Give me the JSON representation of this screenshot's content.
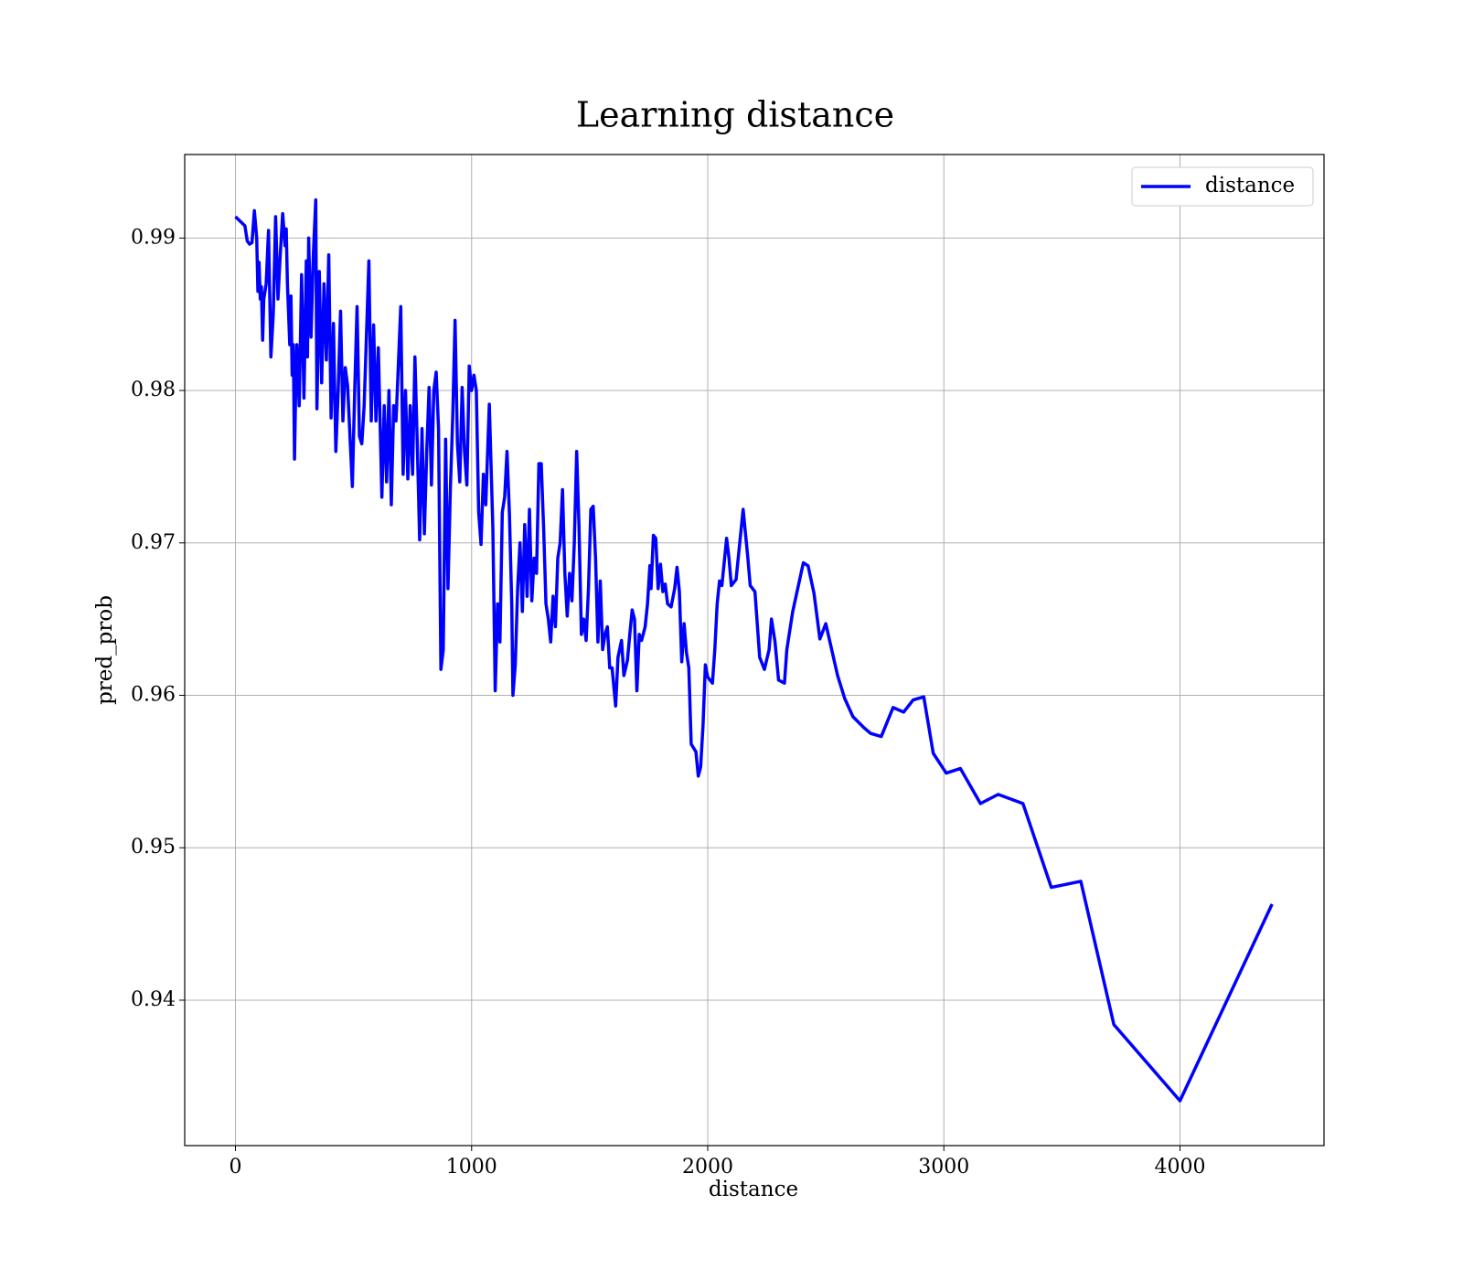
{
  "chart_data": {
    "type": "line",
    "title": "Learning distance",
    "x_label": "distance",
    "y_label": "pred_prob",
    "x": [
      0,
      40,
      50,
      60,
      70,
      80,
      90,
      95,
      100,
      105,
      110,
      115,
      120,
      130,
      140,
      150,
      160,
      170,
      180,
      190,
      200,
      210,
      215,
      220,
      230,
      235,
      240,
      245,
      250,
      255,
      260,
      270,
      280,
      290,
      300,
      305,
      310,
      320,
      330,
      340,
      345,
      355,
      365,
      375,
      385,
      395,
      405,
      415,
      425,
      435,
      445,
      455,
      465,
      475,
      495,
      505,
      515,
      525,
      535,
      545,
      565,
      575,
      585,
      595,
      605,
      620,
      630,
      640,
      650,
      660,
      670,
      680,
      700,
      710,
      720,
      730,
      740,
      750,
      760,
      770,
      780,
      790,
      800,
      810,
      820,
      830,
      840,
      850,
      860,
      870,
      880,
      890,
      900,
      910,
      920,
      930,
      940,
      950,
      960,
      970,
      980,
      990,
      1000,
      1010,
      1020,
      1030,
      1040,
      1050,
      1060,
      1075,
      1090,
      1100,
      1110,
      1120,
      1130,
      1140,
      1150,
      1160,
      1170,
      1175,
      1185,
      1195,
      1205,
      1215,
      1225,
      1235,
      1245,
      1255,
      1265,
      1275,
      1285,
      1295,
      1305,
      1315,
      1325,
      1335,
      1345,
      1355,
      1365,
      1375,
      1385,
      1395,
      1405,
      1415,
      1425,
      1435,
      1445,
      1455,
      1465,
      1475,
      1485,
      1495,
      1505,
      1515,
      1525,
      1535,
      1545,
      1555,
      1565,
      1575,
      1585,
      1595,
      1610,
      1620,
      1635,
      1645,
      1660,
      1670,
      1680,
      1690,
      1700,
      1710,
      1720,
      1735,
      1745,
      1755,
      1760,
      1770,
      1780,
      1790,
      1800,
      1810,
      1820,
      1830,
      1845,
      1860,
      1870,
      1880,
      1890,
      1900,
      1910,
      1920,
      1930,
      1950,
      1960,
      1970,
      1980,
      1990,
      2000,
      2020,
      2030,
      2040,
      2050,
      2060,
      2080,
      2090,
      2100,
      2120,
      2150,
      2170,
      2180,
      2200,
      2220,
      2240,
      2260,
      2270,
      2285,
      2300,
      2325,
      2335,
      2360,
      2405,
      2425,
      2450,
      2475,
      2500,
      2550,
      2580,
      2615,
      2660,
      2690,
      2735,
      2785,
      2830,
      2870,
      2915,
      2955,
      3010,
      3070,
      3155,
      3230,
      3335,
      3455,
      3580,
      3720,
      4000,
      4390
    ],
    "series": [
      {
        "name": "distance",
        "color": "#0000ff",
        "values": [
          0.9914,
          0.9908,
          0.9898,
          0.9896,
          0.9897,
          0.9918,
          0.99,
          0.9865,
          0.9884,
          0.986,
          0.9868,
          0.9833,
          0.986,
          0.987,
          0.9905,
          0.9822,
          0.985,
          0.9914,
          0.986,
          0.989,
          0.9916,
          0.9895,
          0.9906,
          0.987,
          0.983,
          0.9862,
          0.981,
          0.983,
          0.9755,
          0.98,
          0.983,
          0.979,
          0.9876,
          0.9795,
          0.9885,
          0.9822,
          0.99,
          0.9835,
          0.989,
          0.9925,
          0.9788,
          0.9878,
          0.9805,
          0.987,
          0.982,
          0.9889,
          0.9782,
          0.9844,
          0.976,
          0.98,
          0.9852,
          0.978,
          0.9815,
          0.9803,
          0.9737,
          0.98,
          0.9855,
          0.977,
          0.9765,
          0.979,
          0.9885,
          0.978,
          0.9843,
          0.978,
          0.9828,
          0.973,
          0.979,
          0.974,
          0.98,
          0.9725,
          0.979,
          0.978,
          0.9855,
          0.9745,
          0.98,
          0.9742,
          0.979,
          0.9745,
          0.9822,
          0.9765,
          0.9702,
          0.9775,
          0.9706,
          0.976,
          0.9802,
          0.9738,
          0.98,
          0.9812,
          0.9775,
          0.9617,
          0.963,
          0.9768,
          0.967,
          0.9735,
          0.9782,
          0.9846,
          0.9765,
          0.974,
          0.9802,
          0.976,
          0.9738,
          0.9816,
          0.98,
          0.981,
          0.98,
          0.972,
          0.9699,
          0.9745,
          0.9725,
          0.9791,
          0.971,
          0.9603,
          0.966,
          0.9635,
          0.972,
          0.973,
          0.976,
          0.972,
          0.966,
          0.96,
          0.962,
          0.967,
          0.97,
          0.9655,
          0.9712,
          0.9665,
          0.9722,
          0.9662,
          0.969,
          0.968,
          0.9752,
          0.9752,
          0.971,
          0.966,
          0.965,
          0.9635,
          0.9665,
          0.9645,
          0.969,
          0.97,
          0.9735,
          0.968,
          0.9652,
          0.968,
          0.9662,
          0.97,
          0.976,
          0.971,
          0.964,
          0.965,
          0.9636,
          0.967,
          0.9722,
          0.9724,
          0.969,
          0.9635,
          0.9675,
          0.963,
          0.964,
          0.9645,
          0.9618,
          0.9618,
          0.9593,
          0.9625,
          0.9636,
          0.9613,
          0.9623,
          0.964,
          0.9656,
          0.965,
          0.9603,
          0.964,
          0.9636,
          0.9645,
          0.966,
          0.9685,
          0.967,
          0.9705,
          0.9703,
          0.967,
          0.9686,
          0.9668,
          0.9673,
          0.966,
          0.9658,
          0.967,
          0.9684,
          0.9668,
          0.9622,
          0.9647,
          0.9628,
          0.9618,
          0.9568,
          0.9563,
          0.9547,
          0.9553,
          0.958,
          0.962,
          0.9612,
          0.9608,
          0.963,
          0.966,
          0.9675,
          0.9672,
          0.9703,
          0.969,
          0.9672,
          0.9676,
          0.9722,
          0.969,
          0.9672,
          0.9668,
          0.9625,
          0.9617,
          0.963,
          0.965,
          0.9635,
          0.961,
          0.9608,
          0.963,
          0.9655,
          0.9687,
          0.9685,
          0.9667,
          0.9637,
          0.9647,
          0.9613,
          0.9598,
          0.9586,
          0.9579,
          0.9575,
          0.9573,
          0.9592,
          0.9589,
          0.9597,
          0.9599,
          0.9562,
          0.9549,
          0.9552,
          0.9529,
          0.9535,
          0.9529,
          0.9474,
          0.9478,
          0.9384,
          0.9334,
          0.9463
        ]
      }
    ],
    "xlim": [
      -215,
      4610
    ],
    "ylim": [
      0.93046,
      0.99548
    ],
    "xticks": [
      0,
      1000,
      2000,
      3000,
      4000
    ],
    "yticks": [
      0.94,
      0.95,
      0.96,
      0.97,
      0.98,
      0.99
    ],
    "grid": true,
    "legend_position": "upper right"
  }
}
